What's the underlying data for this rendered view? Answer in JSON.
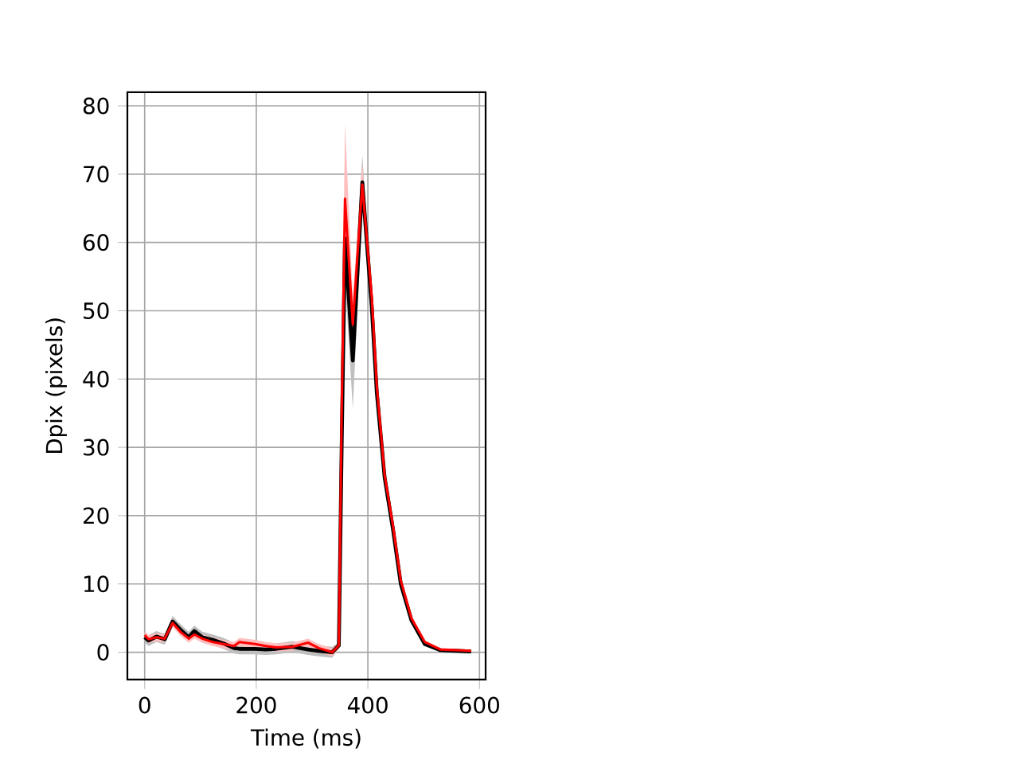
{
  "chart_data": {
    "type": "line",
    "xlabel": "Time (ms)",
    "ylabel": "Dpix (pixels)",
    "x": [
      0,
      7,
      21,
      36,
      50,
      64,
      79,
      89,
      103,
      122,
      141,
      160,
      170,
      198,
      217,
      236,
      265,
      293,
      312,
      336,
      348,
      353,
      359,
      373,
      390,
      407,
      416,
      430,
      445,
      459,
      478,
      502,
      530,
      560,
      585
    ],
    "series": [
      {
        "color": "#000000",
        "values": [
          2.2,
          1.7,
          2.3,
          1.9,
          4.5,
          3.3,
          2.2,
          3.1,
          2.2,
          1.8,
          1.3,
          0.6,
          0.5,
          0.5,
          0.4,
          0.5,
          0.8,
          0.4,
          0.2,
          0.0,
          1.0,
          30,
          60.6,
          42.7,
          68.8,
          50.5,
          38,
          25.6,
          18,
          10,
          4.7,
          1.2,
          0.3,
          0.2,
          0.1
        ],
        "lower": [
          1.4,
          0.9,
          1.5,
          1.1,
          3.7,
          2.5,
          1.4,
          2.3,
          1.4,
          1.0,
          0.5,
          -0.2,
          -0.3,
          -0.3,
          -0.4,
          -0.3,
          0.0,
          -0.4,
          -0.6,
          -0.8,
          0.5,
          25,
          54.6,
          35.7,
          64.8,
          48.5,
          36.5,
          24.6,
          17,
          9.5,
          4.4,
          1.0,
          0.1,
          0.0,
          -0.1
        ],
        "upper": [
          3.0,
          2.5,
          3.1,
          2.7,
          5.3,
          4.1,
          3.0,
          3.9,
          3.0,
          2.6,
          2.1,
          1.4,
          1.3,
          1.3,
          1.2,
          1.3,
          1.6,
          1.2,
          1.0,
          0.8,
          1.5,
          35,
          66.6,
          49.7,
          72.8,
          52.5,
          39.5,
          26.6,
          19,
          10.5,
          5.0,
          1.4,
          0.5,
          0.4,
          0.3
        ]
      },
      {
        "color": "#ff0000",
        "values": [
          2.5,
          1.9,
          2.2,
          2.0,
          4.3,
          3.0,
          2.0,
          2.6,
          2.0,
          1.5,
          1.2,
          0.9,
          1.5,
          1.2,
          0.9,
          0.7,
          0.8,
          1.4,
          0.6,
          0.0,
          1.0,
          35,
          66.4,
          48,
          68.5,
          52,
          39,
          26,
          18.5,
          10.5,
          5,
          1.5,
          0.4,
          0.3,
          0.2
        ],
        "lower": [
          1.9,
          1.3,
          1.6,
          1.4,
          3.7,
          2.4,
          1.4,
          2.0,
          1.4,
          0.9,
          0.6,
          0.3,
          0.9,
          0.6,
          0.3,
          0.1,
          0.2,
          0.8,
          0.0,
          -0.6,
          0.5,
          29,
          55.4,
          44,
          65.5,
          50,
          37.5,
          25,
          17.5,
          10,
          4.7,
          1.3,
          0.2,
          0.1,
          0.0
        ],
        "upper": [
          3.1,
          2.5,
          2.8,
          2.6,
          4.9,
          3.6,
          2.6,
          3.2,
          2.6,
          2.1,
          1.8,
          1.5,
          2.1,
          1.8,
          1.5,
          1.3,
          1.4,
          2.0,
          1.2,
          0.6,
          1.5,
          41,
          77.4,
          52,
          71.5,
          54,
          40.5,
          27,
          19.5,
          11,
          5.3,
          1.7,
          0.6,
          0.5,
          0.4
        ]
      }
    ],
    "xlim": [
      -31,
      611
    ],
    "ylim": [
      -4,
      82
    ],
    "xticks": [
      0,
      200,
      400,
      600
    ],
    "yticks": [
      0,
      10,
      20,
      30,
      40,
      50,
      60,
      70,
      80
    ],
    "grid": true
  }
}
